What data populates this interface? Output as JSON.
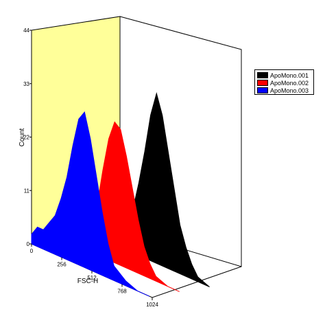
{
  "chart_data": {
    "type": "area",
    "title": "",
    "xlabel": "FSC-H",
    "ylabel": "Count",
    "x_ticks": [
      "0",
      "256",
      "512",
      "768",
      "1024"
    ],
    "y_ticks": [
      "0",
      "11",
      "22",
      "33",
      "44"
    ],
    "xlim": [
      0,
      1024
    ],
    "ylim": [
      0,
      44
    ],
    "legend_position": "right",
    "colors": {
      "wall": "#ffff99",
      "ApoMono.001": "#000000",
      "ApoMono.002": "#ff0000",
      "ApoMono.003": "#0000ff"
    },
    "series": [
      {
        "name": "ApoMono.001",
        "x": [
          0,
          100,
          200,
          300,
          350,
          400,
          450,
          500,
          550,
          600,
          650,
          700,
          750,
          800,
          850,
          900,
          1000
        ],
        "values": [
          0,
          1,
          2,
          5,
          9,
          15,
          22,
          30,
          35,
          31,
          24,
          17,
          10,
          6,
          3,
          1,
          0
        ]
      },
      {
        "name": "ApoMono.002",
        "x": [
          0,
          100,
          200,
          300,
          350,
          400,
          450,
          500,
          550,
          600,
          650,
          700,
          750,
          800,
          900,
          1000
        ],
        "values": [
          0,
          2,
          4,
          10,
          18,
          25,
          29,
          28,
          23,
          17,
          11,
          6,
          3,
          1,
          0,
          0
        ]
      },
      {
        "name": "ApoMono.003",
        "x": [
          0,
          50,
          100,
          150,
          200,
          250,
          300,
          350,
          400,
          450,
          500,
          550,
          600,
          650,
          700,
          800,
          900,
          1000
        ],
        "values": [
          2,
          4,
          4,
          6,
          8,
          12,
          17,
          24,
          30,
          32,
          27,
          20,
          13,
          7,
          3,
          1,
          0,
          0
        ]
      }
    ]
  }
}
